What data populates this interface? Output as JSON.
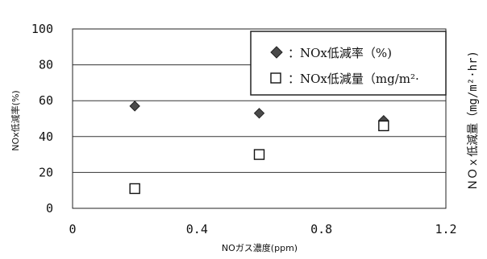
{
  "chart_data": {
    "type": "scatter",
    "xlabel": "NOガス濃度(ppm)",
    "ylabel": "NOx低減率(%)",
    "y2label": "ＮＯｘ低減量（mg/m²·hr)",
    "xlim": [
      0,
      1.2
    ],
    "ylim": [
      0,
      100
    ],
    "x_ticks": [
      "0",
      "0.4",
      "0.8",
      "1.2"
    ],
    "y_ticks": [
      "0",
      "20",
      "40",
      "60",
      "80",
      "100"
    ],
    "grid": "horizontal",
    "legend_position": "top-right",
    "series": [
      {
        "name": "：NOx低減率（%)",
        "marker": "diamond",
        "color": "#4a4a4a",
        "points": [
          {
            "x": 0.2,
            "y": 57
          },
          {
            "x": 0.6,
            "y": 53
          },
          {
            "x": 1.0,
            "y": 49
          }
        ]
      },
      {
        "name": "：NOx低減量（mg/m²·",
        "marker": "open-square",
        "color": "#111111",
        "points": [
          {
            "x": 0.2,
            "y": 11
          },
          {
            "x": 0.6,
            "y": 30
          },
          {
            "x": 1.0,
            "y": 46
          }
        ]
      }
    ]
  }
}
